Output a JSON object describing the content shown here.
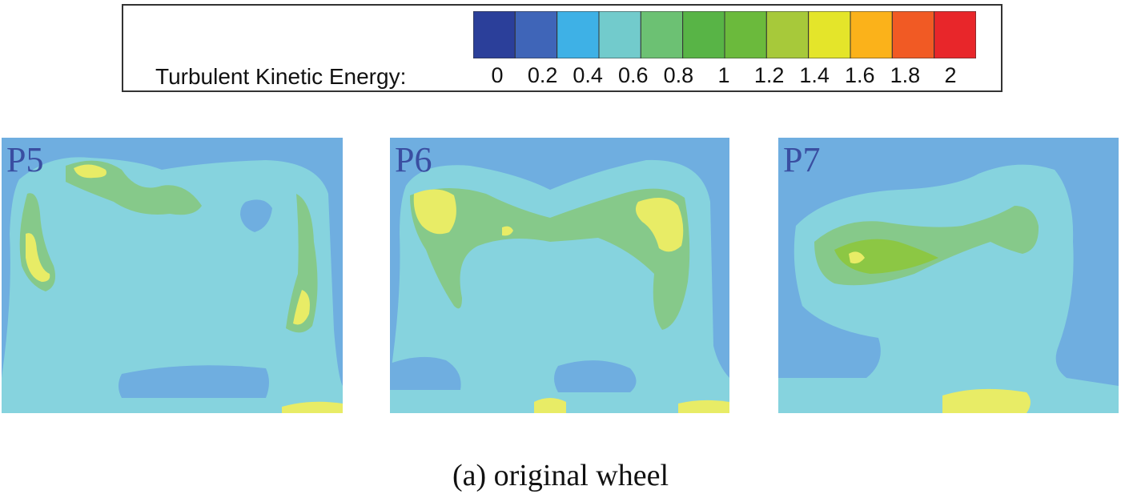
{
  "legend": {
    "label": "Turbulent Kinetic Energy:",
    "ticks": [
      "0",
      "0.2",
      "0.4",
      "0.6",
      "0.8",
      "1",
      "1.2",
      "1.4",
      "1.6",
      "1.8",
      "2"
    ],
    "colors": [
      "#2b3f9a",
      "#3f65b8",
      "#3eb1e6",
      "#72cbcc",
      "#6cc173",
      "#58b446",
      "#6bba3c",
      "#a7c93a",
      "#e4e52a",
      "#fbb21a",
      "#f15a24",
      "#e8262a"
    ]
  },
  "panels": [
    {
      "label": "P5"
    },
    {
      "label": "P6"
    },
    {
      "label": "P7"
    }
  ],
  "palette": {
    "bg": "#6faee0",
    "low": "#86d3de",
    "mid": "#86c98a",
    "green": "#8cc744",
    "high": "#e8ec66"
  },
  "caption": "(a) original wheel"
}
